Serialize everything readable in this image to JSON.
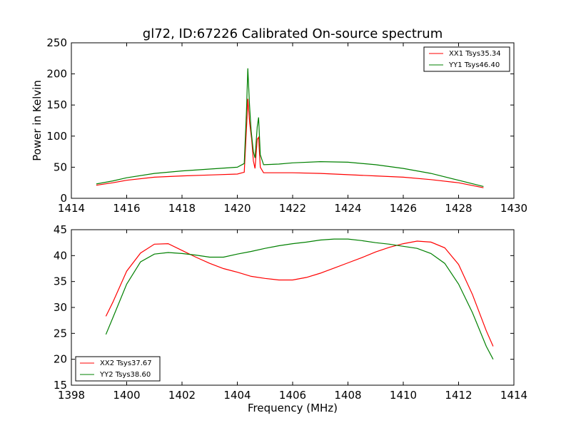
{
  "chart_data": [
    {
      "type": "line",
      "title": "gl72, ID:67226 Calibrated On-source spectrum",
      "xlabel": "",
      "ylabel": "Power in Kelvin",
      "xlim": [
        1414,
        1430
      ],
      "ylim": [
        0,
        250
      ],
      "xticks": [
        "1414",
        "1416",
        "1418",
        "1420",
        "1422",
        "1424",
        "1426",
        "1428",
        "1430"
      ],
      "yticks": [
        "0",
        "50",
        "100",
        "150",
        "200",
        "250"
      ],
      "grid": false,
      "legend_position": "top-right",
      "series": [
        {
          "name": "XX1 Tsys35.34",
          "color": "#ff0000",
          "points": [
            [
              1414.9,
              21
            ],
            [
              1415.5,
              25
            ],
            [
              1416.0,
              29
            ],
            [
              1417.0,
              34
            ],
            [
              1418.0,
              36
            ],
            [
              1419.0,
              37.5
            ],
            [
              1420.0,
              39
            ],
            [
              1420.25,
              42
            ],
            [
              1420.35,
              130
            ],
            [
              1420.38,
              160
            ],
            [
              1420.45,
              120
            ],
            [
              1420.52,
              95
            ],
            [
              1420.58,
              60
            ],
            [
              1420.64,
              48
            ],
            [
              1420.72,
              95
            ],
            [
              1420.77,
              98
            ],
            [
              1420.83,
              50
            ],
            [
              1420.95,
              41
            ],
            [
              1421.5,
              41
            ],
            [
              1422.0,
              41
            ],
            [
              1423.0,
              40
            ],
            [
              1424.0,
              38
            ],
            [
              1425.0,
              36
            ],
            [
              1426.0,
              34
            ],
            [
              1427.0,
              30
            ],
            [
              1428.0,
              25
            ],
            [
              1428.9,
              17
            ]
          ]
        },
        {
          "name": "YY1 Tsys46.40",
          "color": "#008000",
          "points": [
            [
              1414.9,
              23
            ],
            [
              1415.5,
              28
            ],
            [
              1416.0,
              33
            ],
            [
              1417.0,
              40
            ],
            [
              1418.0,
              44
            ],
            [
              1419.0,
              47
            ],
            [
              1420.0,
              50
            ],
            [
              1420.25,
              56
            ],
            [
              1420.33,
              140
            ],
            [
              1420.38,
              209
            ],
            [
              1420.44,
              150
            ],
            [
              1420.5,
              108
            ],
            [
              1420.58,
              75
            ],
            [
              1420.64,
              65
            ],
            [
              1420.72,
              115
            ],
            [
              1420.77,
              130
            ],
            [
              1420.83,
              70
            ],
            [
              1420.95,
              54
            ],
            [
              1421.5,
              55
            ],
            [
              1422.0,
              57
            ],
            [
              1423.0,
              59
            ],
            [
              1424.0,
              58
            ],
            [
              1425.0,
              54
            ],
            [
              1426.0,
              48
            ],
            [
              1427.0,
              40
            ],
            [
              1428.0,
              29
            ],
            [
              1428.9,
              19
            ]
          ]
        }
      ]
    },
    {
      "type": "line",
      "title": "",
      "xlabel": "Frequency (MHz)",
      "ylabel": "",
      "xlim": [
        1398,
        1414
      ],
      "ylim": [
        15,
        45
      ],
      "xticks": [
        "1398",
        "1400",
        "1402",
        "1404",
        "1406",
        "1408",
        "1410",
        "1412",
        "1414"
      ],
      "yticks": [
        "15",
        "20",
        "25",
        "30",
        "35",
        "40",
        "45"
      ],
      "grid": false,
      "legend_position": "bottom-left",
      "series": [
        {
          "name": "XX2 Tsys37.67",
          "color": "#ff0000",
          "points": [
            [
              1399.25,
              28.3
            ],
            [
              1399.5,
              31
            ],
            [
              1400.0,
              37
            ],
            [
              1400.5,
              40.5
            ],
            [
              1401.0,
              42.2
            ],
            [
              1401.5,
              42.3
            ],
            [
              1402.0,
              41
            ],
            [
              1402.5,
              39.7
            ],
            [
              1403.0,
              38.5
            ],
            [
              1403.5,
              37.5
            ],
            [
              1404.0,
              36.8
            ],
            [
              1404.5,
              36
            ],
            [
              1405.0,
              35.6
            ],
            [
              1405.5,
              35.3
            ],
            [
              1406.0,
              35.3
            ],
            [
              1406.5,
              35.8
            ],
            [
              1407.0,
              36.6
            ],
            [
              1407.5,
              37.6
            ],
            [
              1408.0,
              38.6
            ],
            [
              1408.5,
              39.6
            ],
            [
              1409.0,
              40.7
            ],
            [
              1409.5,
              41.6
            ],
            [
              1410.0,
              42.3
            ],
            [
              1410.5,
              42.8
            ],
            [
              1411.0,
              42.6
            ],
            [
              1411.5,
              41.5
            ],
            [
              1412.0,
              38.3
            ],
            [
              1412.5,
              32.5
            ],
            [
              1413.0,
              25.5
            ],
            [
              1413.25,
              22.5
            ]
          ]
        },
        {
          "name": "YY2 Tsys38.60",
          "color": "#008000",
          "points": [
            [
              1399.25,
              24.8
            ],
            [
              1399.5,
              28
            ],
            [
              1400.0,
              34.5
            ],
            [
              1400.5,
              38.8
            ],
            [
              1401.0,
              40.3
            ],
            [
              1401.5,
              40.6
            ],
            [
              1402.0,
              40.4
            ],
            [
              1402.5,
              40.1
            ],
            [
              1403.0,
              39.7
            ],
            [
              1403.5,
              39.7
            ],
            [
              1404.0,
              40.3
            ],
            [
              1404.5,
              40.8
            ],
            [
              1405.0,
              41.4
            ],
            [
              1405.5,
              41.9
            ],
            [
              1406.0,
              42.3
            ],
            [
              1406.5,
              42.6
            ],
            [
              1407.0,
              43
            ],
            [
              1407.5,
              43.2
            ],
            [
              1408.0,
              43.2
            ],
            [
              1408.5,
              42.9
            ],
            [
              1409.0,
              42.5
            ],
            [
              1409.5,
              42.2
            ],
            [
              1410.0,
              41.8
            ],
            [
              1410.5,
              41.4
            ],
            [
              1411.0,
              40.4
            ],
            [
              1411.5,
              38.5
            ],
            [
              1412.0,
              34.5
            ],
            [
              1412.5,
              29
            ],
            [
              1413.0,
              22.5
            ],
            [
              1413.25,
              20
            ]
          ]
        }
      ]
    }
  ]
}
